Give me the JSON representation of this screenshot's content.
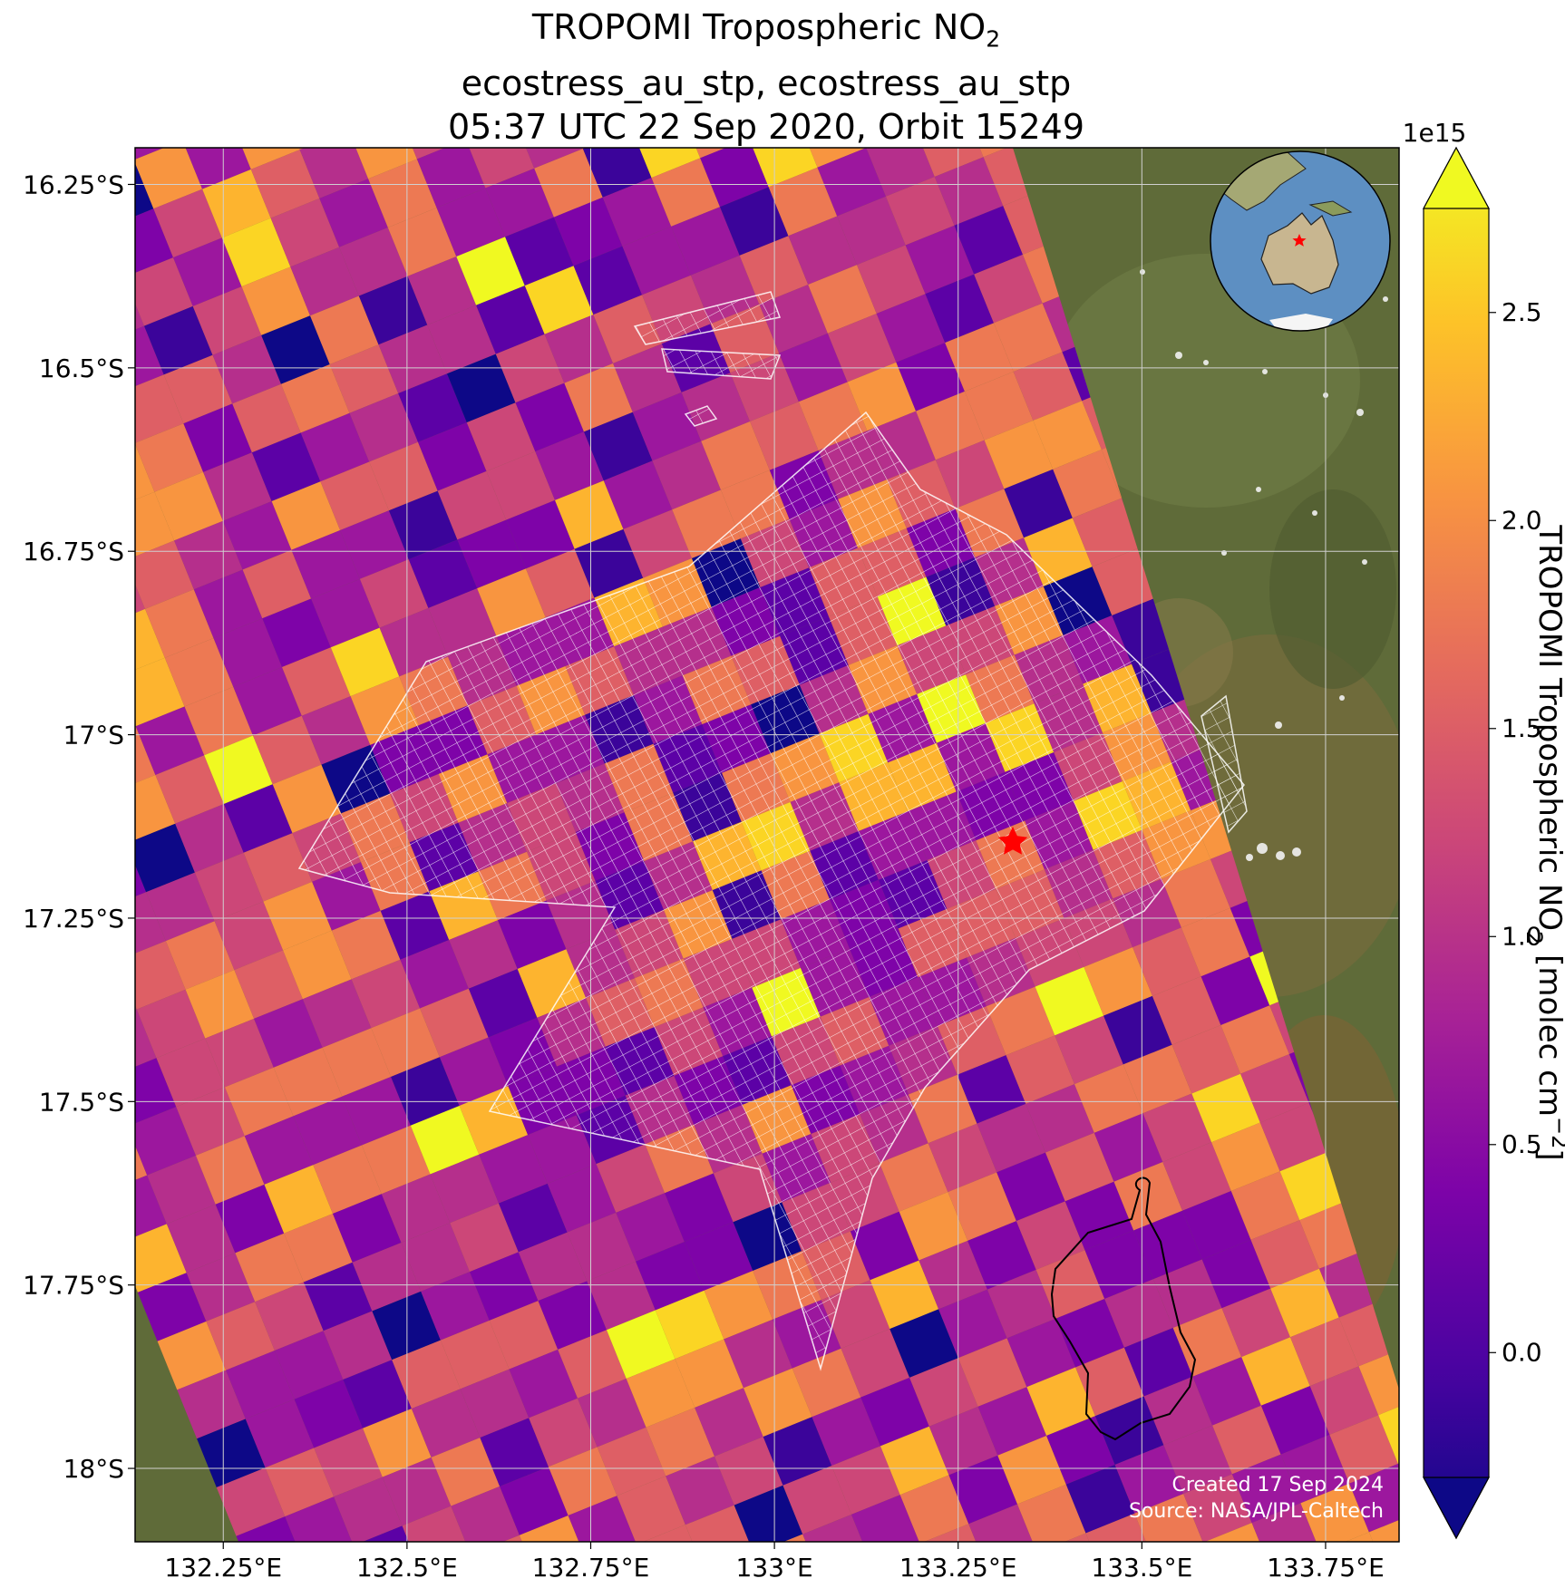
{
  "title": {
    "line1_main": "TROPOMI Tropospheric NO",
    "line1_sub": "2",
    "line2": "ecostress_au_stp, ecostress_au_stp",
    "line3": "05:37 UTC 22 Sep 2020, Orbit 15249"
  },
  "axes": {
    "lat_labels": [
      "16.25°S",
      "16.5°S",
      "16.75°S",
      "17°S",
      "17.25°S",
      "17.5°S",
      "17.75°S",
      "18°S"
    ],
    "lon_labels": [
      "132.25°E",
      "132.5°E",
      "132.75°E",
      "133°E",
      "133.25°E",
      "133.5°E",
      "133.75°E"
    ],
    "lat_range": [
      -16.2,
      -18.1
    ],
    "lon_range": [
      132.13,
      133.85
    ]
  },
  "colorbar": {
    "scale_label": "1e15",
    "tick_labels": [
      "0.0",
      "0.5",
      "1.0",
      "1.5",
      "2.0",
      "2.5"
    ],
    "tick_values": [
      0.0,
      0.5,
      1.0,
      1.5,
      2.0,
      2.5
    ],
    "vmin": -0.3,
    "vmax": 2.75,
    "label_main": "TROPOMI Tropospheric NO",
    "label_sub": "2",
    "label_units": " [molec cm",
    "label_exp": "−2",
    "label_close": "]",
    "colormap": "plasma"
  },
  "site_marker": {
    "shape": "star",
    "color": "#ff0000",
    "lon": 133.33,
    "lat": -17.15
  },
  "inset": {
    "type": "globe",
    "marker_color": "#ff0000"
  },
  "credits": {
    "created": "Created 17 Sep 2024",
    "source": "Source: NASA/JPL-Caltech"
  },
  "colors": {
    "land": "#5f6b39",
    "grid": "#d0d0d0",
    "footprint_outline": "#ffffff",
    "boundary": "#000000"
  }
}
